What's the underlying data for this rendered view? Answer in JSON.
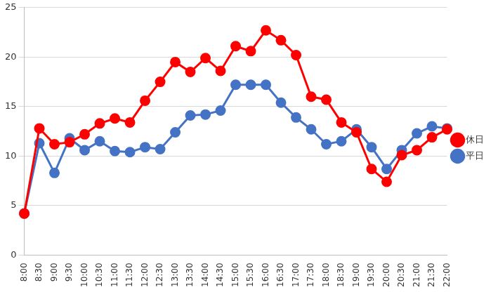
{
  "chart_data": {
    "type": "line",
    "categories": [
      "8:00",
      "8:30",
      "9:00",
      "9:30",
      "10:00",
      "10:30",
      "11:00",
      "11:30",
      "12:00",
      "12:30",
      "13:00",
      "13:30",
      "14:00",
      "14:30",
      "15:00",
      "15:30",
      "16:00",
      "16:30",
      "17:00",
      "17:30",
      "18:00",
      "18:30",
      "19:00",
      "19:30",
      "20:00",
      "20:30",
      "21:00",
      "21:30",
      "22:00"
    ],
    "series": [
      {
        "name": "休日",
        "color": "#ff0000",
        "marker": "circle",
        "values": [
          4.2,
          12.8,
          11.2,
          11.4,
          12.2,
          13.3,
          13.8,
          13.4,
          15.6,
          17.5,
          19.5,
          18.5,
          19.9,
          18.6,
          21.1,
          20.6,
          22.7,
          21.7,
          20.2,
          16.0,
          15.7,
          13.4,
          12.4,
          8.7,
          7.4,
          10.1,
          10.6,
          11.9,
          12.7
        ]
      },
      {
        "name": "平日",
        "color": "#4472c4",
        "marker": "circle",
        "values": [
          4.2,
          11.3,
          8.3,
          11.8,
          10.6,
          11.5,
          10.5,
          10.4,
          10.9,
          10.7,
          12.4,
          14.1,
          14.2,
          14.6,
          17.2,
          17.2,
          17.2,
          15.4,
          13.9,
          12.7,
          11.2,
          11.5,
          12.7,
          10.9,
          8.7,
          10.6,
          12.3,
          13.0,
          12.8
        ]
      }
    ],
    "ylim": [
      0,
      25
    ],
    "yticks": [
      0,
      5,
      10,
      15,
      20,
      25
    ],
    "grid": true,
    "legend": "right"
  }
}
